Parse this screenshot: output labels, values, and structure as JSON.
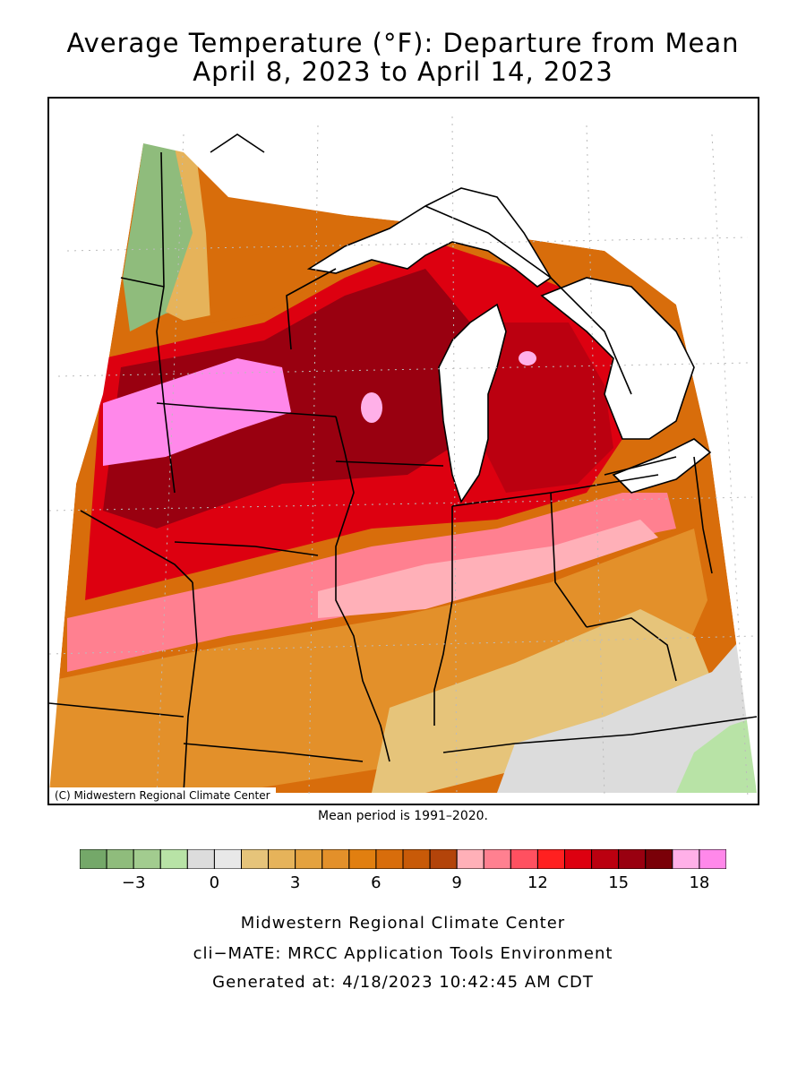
{
  "title": {
    "line1": "Average Temperature (°F): Departure from Mean",
    "line2": "April 8, 2023 to April 14, 2023"
  },
  "map": {
    "credit": "(C) Midwestern Regional Climate Center",
    "mean_period": "Mean period is 1991–2020.",
    "colors": {
      "lake": "#ffffff",
      "boundary": "#000000",
      "grid": "#bbbbbb"
    }
  },
  "legend": {
    "bins": [
      {
        "color": "#74a869"
      },
      {
        "color": "#8fbc7c"
      },
      {
        "color": "#a2cc8f"
      },
      {
        "color": "#b8e3a6"
      },
      {
        "color": "#dcdcdc"
      },
      {
        "color": "#e8e8e8"
      },
      {
        "color": "#e6c47a"
      },
      {
        "color": "#e6b35a"
      },
      {
        "color": "#e4a23f"
      },
      {
        "color": "#e3902a"
      },
      {
        "color": "#e17f10"
      },
      {
        "color": "#d86d0b"
      },
      {
        "color": "#c85a08"
      },
      {
        "color": "#b3440a"
      },
      {
        "color": "#ffb0b8"
      },
      {
        "color": "#ff8090"
      },
      {
        "color": "#ff5060"
      },
      {
        "color": "#ff2020"
      },
      {
        "color": "#dd0010"
      },
      {
        "color": "#bb0010"
      },
      {
        "color": "#990010"
      },
      {
        "color": "#7a0008"
      },
      {
        "color": "#ffb0e8"
      },
      {
        "color": "#ff88ea"
      }
    ],
    "ticks": [
      {
        "label": "−3",
        "value": -3
      },
      {
        "label": "0",
        "value": 0
      },
      {
        "label": "3",
        "value": 3
      },
      {
        "label": "6",
        "value": 6
      },
      {
        "label": "9",
        "value": 9
      },
      {
        "label": "12",
        "value": 12
      },
      {
        "label": "15",
        "value": 15
      },
      {
        "label": "18",
        "value": 18
      }
    ]
  },
  "footer": {
    "line1": "Midwestern Regional Climate Center",
    "line2": "cli−MATE: MRCC Application Tools Environment",
    "line3": "Generated at: 4/18/2023 10:42:45 AM CDT"
  }
}
